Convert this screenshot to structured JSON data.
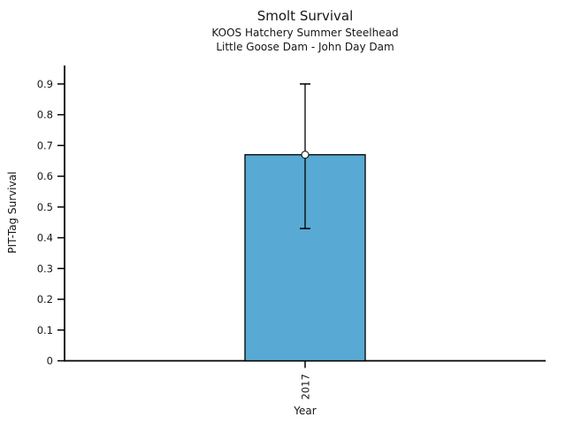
{
  "header": {
    "title": "Smolt Survival",
    "subtitle1": "KOOS Hatchery Summer Steelhead",
    "subtitle2": "Little Goose Dam - John Day Dam"
  },
  "chart_data": {
    "type": "bar",
    "title": "Smolt Survival",
    "subtitle1": "KOOS Hatchery Summer Steelhead",
    "subtitle2": "Little Goose Dam - John Day Dam",
    "xlabel": "Year",
    "ylabel": "PIT-Tag Survival",
    "categories": [
      "2017"
    ],
    "values": [
      0.67
    ],
    "error_low": [
      0.43
    ],
    "error_high": [
      0.9
    ],
    "yticks": [
      0,
      0.1,
      0.2,
      0.3,
      0.4,
      0.5,
      0.6,
      0.7,
      0.8,
      0.9
    ],
    "ylim": [
      0,
      0.96
    ],
    "legend": "none",
    "grid": "off",
    "marker": "open-circle",
    "colors": {
      "bar_fill": "#58A9D4",
      "bar_edge": "#000000",
      "error_line": "#000000",
      "axis": "#000000",
      "marker_fill": "#ffffff",
      "marker_edge": "#000000"
    }
  }
}
